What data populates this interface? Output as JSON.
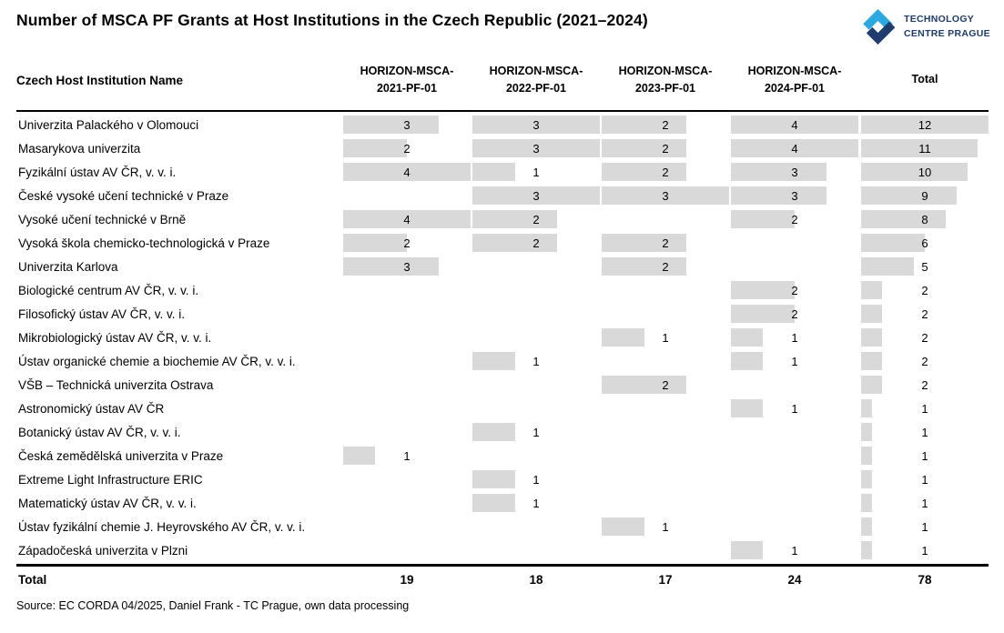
{
  "title": "Number of MSCA PF Grants at Host Institutions in the Czech Republic (2021–2024)",
  "logo": {
    "line1": "TECHNOLOGY",
    "line2": "CENTRE PRAGUE",
    "dark_blue": "#1e3c6e",
    "light_blue": "#2aa9e0"
  },
  "table": {
    "name_header": "Czech Host Institution Name",
    "column_headers": [
      "HORIZON-MSCA-\n2021-PF-01",
      "HORIZON-MSCA-\n2022-PF-01",
      "HORIZON-MSCA-\n2023-PF-01",
      "HORIZON-MSCA-\n2024-PF-01",
      "Total"
    ],
    "total_label": "Total",
    "bar_color": "#d9d9d9"
  },
  "chart_data": {
    "type": "table",
    "title": "Number of MSCA PF Grants at Host Institutions in the Czech Republic (2021–2024)",
    "categories": [
      "HORIZON-MSCA-2021-PF-01",
      "HORIZON-MSCA-2022-PF-01",
      "HORIZON-MSCA-2023-PF-01",
      "HORIZON-MSCA-2024-PF-01",
      "Total"
    ],
    "bar_style": "in-cell horizontal data bars, each column scaled to its own maximum",
    "rows": [
      {
        "name": "Univerzita Palackého v Olomouci",
        "values": [
          3,
          3,
          2,
          4
        ],
        "total": 12
      },
      {
        "name": "Masarykova univerzita",
        "values": [
          2,
          3,
          2,
          4
        ],
        "total": 11
      },
      {
        "name": "Fyzikální ústav AV ČR, v. v. i.",
        "values": [
          4,
          1,
          2,
          3
        ],
        "total": 10
      },
      {
        "name": "České vysoké učení technické v Praze",
        "values": [
          null,
          3,
          3,
          3
        ],
        "total": 9
      },
      {
        "name": "Vysoké učení technické v Brně",
        "values": [
          4,
          2,
          null,
          2
        ],
        "total": 8
      },
      {
        "name": "Vysoká škola chemicko-technologická v Praze",
        "values": [
          2,
          2,
          2,
          null
        ],
        "total": 6
      },
      {
        "name": "Univerzita Karlova",
        "values": [
          3,
          null,
          2,
          null
        ],
        "total": 5
      },
      {
        "name": "Biologické centrum AV ČR, v. v. i.",
        "values": [
          null,
          null,
          null,
          2
        ],
        "total": 2
      },
      {
        "name": "Filosofický ústav AV ČR, v. v. i.",
        "values": [
          null,
          null,
          null,
          2
        ],
        "total": 2
      },
      {
        "name": "Mikrobiologický ústav AV ČR, v. v. i.",
        "values": [
          null,
          null,
          1,
          1
        ],
        "total": 2
      },
      {
        "name": "Ústav organické chemie a biochemie AV ČR, v. v. i.",
        "values": [
          null,
          1,
          null,
          1
        ],
        "total": 2
      },
      {
        "name": "VŠB – Technická univerzita Ostrava",
        "values": [
          null,
          null,
          2,
          null
        ],
        "total": 2
      },
      {
        "name": "Astronomický ústav AV ČR",
        "values": [
          null,
          null,
          null,
          1
        ],
        "total": 1
      },
      {
        "name": "Botanický ústav AV ČR, v. v. i.",
        "values": [
          null,
          1,
          null,
          null
        ],
        "total": 1
      },
      {
        "name": "Česká zemědělská univerzita v Praze",
        "values": [
          1,
          null,
          null,
          null
        ],
        "total": 1
      },
      {
        "name": "Extreme Light Infrastructure ERIC",
        "values": [
          null,
          1,
          null,
          null
        ],
        "total": 1
      },
      {
        "name": "Matematický ústav AV ČR, v. v. i.",
        "values": [
          null,
          1,
          null,
          null
        ],
        "total": 1
      },
      {
        "name": "Ústav fyzikální chemie J. Heyrovského AV ČR, v. v. i.",
        "values": [
          null,
          null,
          1,
          null
        ],
        "total": 1
      },
      {
        "name": "Západočeská univerzita v Plzni",
        "values": [
          null,
          null,
          null,
          1
        ],
        "total": 1
      }
    ],
    "column_totals": [
      19,
      18,
      17,
      24,
      78
    ]
  },
  "source": "Source: EC CORDA 04/2025, Daniel Frank - TC Prague, own data processing"
}
